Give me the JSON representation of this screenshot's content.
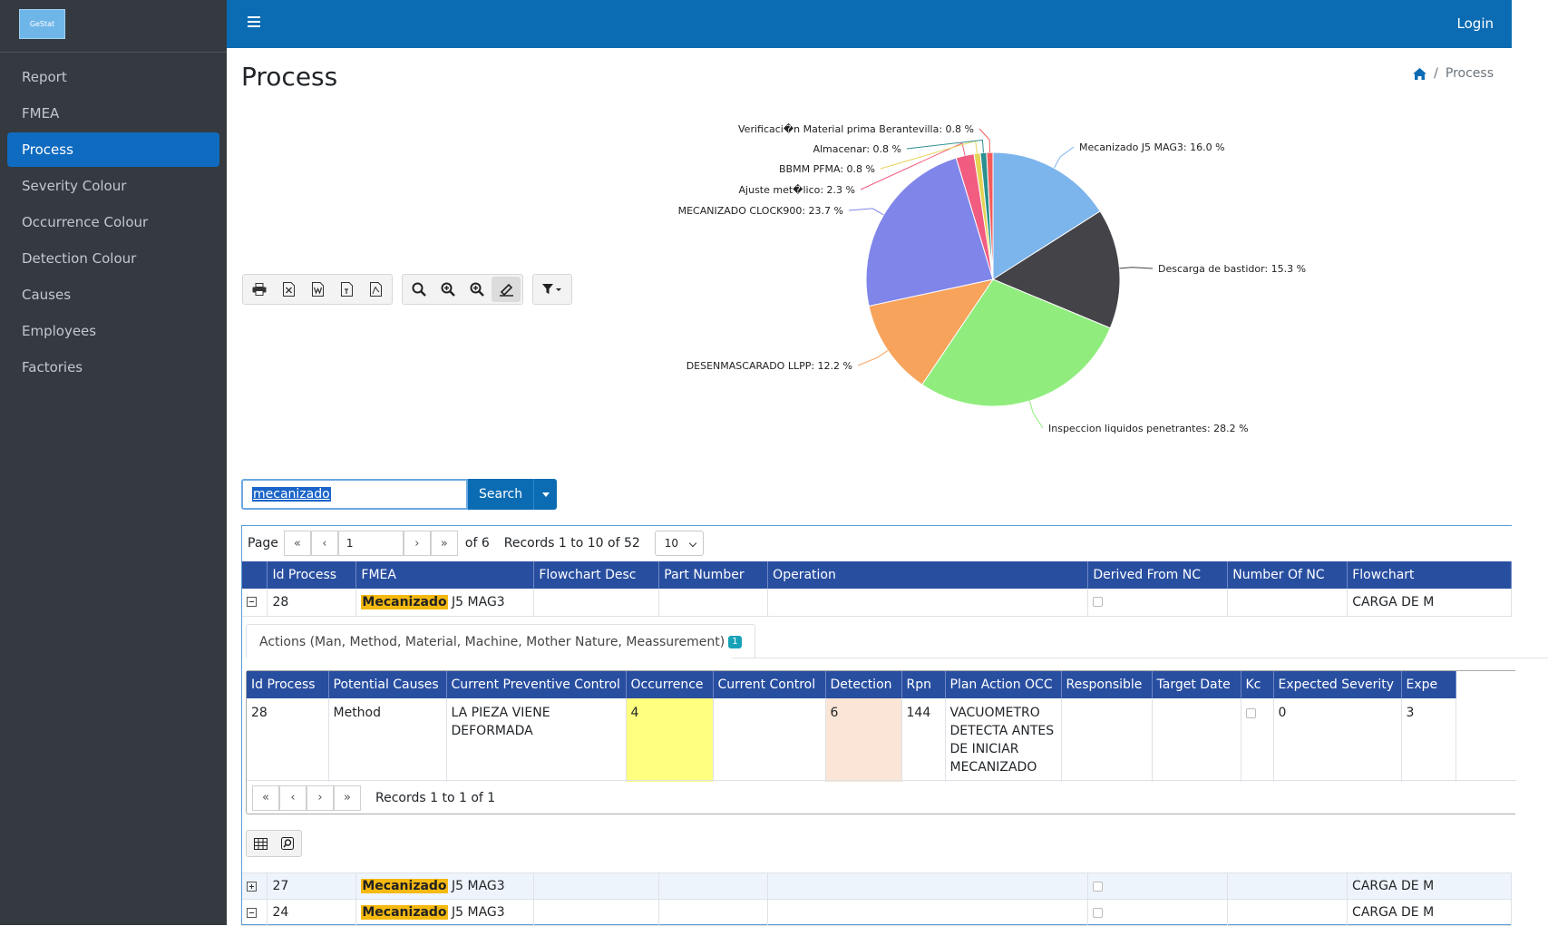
{
  "brand": {
    "logo_text": "GeStat"
  },
  "sidebar": {
    "items": [
      {
        "label": "Report"
      },
      {
        "label": "FMEA"
      },
      {
        "label": "Process"
      },
      {
        "label": "Severity Colour"
      },
      {
        "label": "Occurrence Colour"
      },
      {
        "label": "Detection Colour"
      },
      {
        "label": "Causes"
      },
      {
        "label": "Employees"
      },
      {
        "label": "Factories"
      }
    ],
    "active": "Process"
  },
  "topbar": {
    "login": "Login"
  },
  "page": {
    "title": "Process"
  },
  "breadcrumb": {
    "current": "Process",
    "separator": "/"
  },
  "toolbar": {
    "export_icons": [
      "printer-icon",
      "excel-icon",
      "word-icon",
      "text-icon",
      "pdf-icon"
    ],
    "search_icons": [
      "search-icon",
      "zoom-in-icon",
      "zoom-in-icon",
      "highlight-pen-icon"
    ],
    "filter_icon": "filter-icon"
  },
  "chart_data": {
    "type": "pie",
    "slices": [
      {
        "label": "Mecanizado J5 MAG3",
        "value": 16.0,
        "color": "#7cb5ec"
      },
      {
        "label": "Descarga de bastidor",
        "value": 15.3,
        "color": "#434348"
      },
      {
        "label": "Inspeccion liquidos penetrantes",
        "value": 28.2,
        "color": "#90ed7d"
      },
      {
        "label": "DESENMASCARADO LLPP",
        "value": 12.2,
        "color": "#f7a35c"
      },
      {
        "label": "MECANIZADO CLOCK900",
        "value": 23.7,
        "color": "#8085e9"
      },
      {
        "label": "Ajuste met�lico",
        "value": 2.3,
        "color": "#f15c80"
      },
      {
        "label": "BBMM PFMA",
        "value": 0.8,
        "color": "#e4d354"
      },
      {
        "label": "Almacenar",
        "value": 0.8,
        "color": "#2b908f"
      },
      {
        "label": "Verificaci�n Material prima Berantevilla",
        "value": 0.8,
        "color": "#f45b5b"
      }
    ],
    "unit": "%"
  },
  "search": {
    "value": "mecanizado",
    "button": "Search"
  },
  "pager": {
    "page_label": "Page",
    "page_value": "1",
    "of_text": "of 6",
    "records_text": "Records 1 to 10 of 52",
    "page_size": "10"
  },
  "main_table": {
    "columns": [
      "Id Process",
      "FMEA",
      "Flowchart Desc",
      "Part Number",
      "Operation",
      "Derived From NC",
      "Number Of NC",
      "Flowchart"
    ],
    "rows": [
      {
        "id": "28",
        "fmea_hl": "Mecanizado",
        "fmea_rest": " J5 MAG3",
        "flowchart": "CARGA DE M",
        "expanded": true
      },
      {
        "id": "27",
        "fmea_hl": "Mecanizado",
        "fmea_rest": " J5 MAG3",
        "flowchart": "CARGA DE M",
        "expanded": false
      },
      {
        "id": "24",
        "fmea_hl": "Mecanizado",
        "fmea_rest": " J5 MAG3",
        "flowchart": "CARGA DE M",
        "expanded": true
      }
    ]
  },
  "detail": {
    "tab_label": "Actions (Man, Method, Material, Machine, Mother Nature, Meassurement)",
    "tab_badge": "1",
    "columns": [
      "Id Process",
      "Potential Causes",
      "Current Preventive Control",
      "Occurrence",
      "Current Control",
      "Detection",
      "Rpn",
      "Plan Action OCC",
      "Responsible",
      "Target Date",
      "Kc",
      "Expected Severity",
      "Expe"
    ],
    "row": {
      "id": "28",
      "cause": "Method",
      "preventive": "LA PIEZA VIENE DEFORMADA",
      "occurrence": "4",
      "current_control": "",
      "detection": "6",
      "rpn": "144",
      "plan_action": "VACUOMETRO DETECTA ANTES DE INICIAR MECANIZADO",
      "responsible": "",
      "target_date": "",
      "expected_severity": "0",
      "expe": "3"
    },
    "records_text": "Records 1 to 1 of 1"
  },
  "colors": {
    "sidebar_bg": "#343a40",
    "topbar_bg": "#0b6cb3",
    "table_header": "#284ea0",
    "highlight": "#f5b910",
    "occurrence_cell": "#ffff80",
    "detection_cell": "#fbe5d6"
  }
}
